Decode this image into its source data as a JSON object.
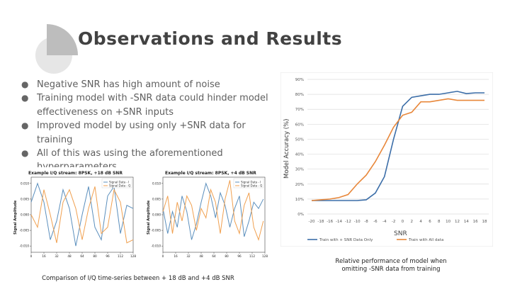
{
  "slide": {
    "title": "Observations and Results",
    "bullets": [
      "Negative SNR has high amount of noise",
      "Training model with -SNR data could hinder model effectiveness on +SNR inputs",
      "Improved model by using only +SNR data for training",
      "All of this was using the aforementioned hyperparameters"
    ],
    "left_caption": "Comparison of I/Q time-series between + 18 dB and +4 dB SNR",
    "right_caption": "Relative performance of model when omitting -SNR data from training"
  },
  "chart_data": [
    {
      "type": "line",
      "title": "Example I/Q stream: 8PSK, +18 dB SNR",
      "ylabel": "Signal Amplitude",
      "xlabel": "",
      "x_ticks": [
        0,
        16,
        32,
        48,
        64,
        80,
        96,
        112,
        128
      ],
      "y_ticks": [
        "0.010",
        "0.005",
        "0.000",
        "-0.005",
        "-0.010"
      ],
      "ylim": [
        -0.012,
        0.012
      ],
      "xlim": [
        0,
        128
      ],
      "legend": "top-right",
      "series": [
        {
          "name": "Signal Data - I",
          "color": "#5b8fbd",
          "x": [
            0,
            8,
            16,
            24,
            32,
            40,
            48,
            56,
            64,
            72,
            80,
            88,
            96,
            104,
            112,
            120,
            128
          ],
          "values": [
            0.004,
            0.01,
            0.004,
            -0.008,
            -0.002,
            0.008,
            0.002,
            -0.01,
            0.0,
            0.009,
            -0.004,
            -0.008,
            0.006,
            0.009,
            -0.006,
            0.003,
            0.002
          ]
        },
        {
          "name": "Signal Data - Q",
          "color": "#f0a050",
          "x": [
            0,
            8,
            16,
            24,
            32,
            40,
            48,
            56,
            64,
            72,
            80,
            88,
            96,
            104,
            112,
            120,
            128
          ],
          "values": [
            0.0,
            -0.004,
            0.008,
            0.0,
            -0.009,
            0.004,
            0.008,
            0.002,
            -0.008,
            0.002,
            0.009,
            -0.006,
            -0.004,
            0.008,
            0.004,
            -0.009,
            -0.008
          ]
        }
      ]
    },
    {
      "type": "line",
      "title": "Example I/Q stream: 8PSK, +4 dB SNR",
      "ylabel": "Signal Amplitude",
      "xlabel": "",
      "x_ticks": [
        0,
        16,
        32,
        48,
        64,
        80,
        96,
        112,
        128
      ],
      "y_ticks": [
        "0.010",
        "0.005",
        "0.000",
        "-0.005",
        "-0.010"
      ],
      "ylim": [
        -0.012,
        0.012
      ],
      "xlim": [
        0,
        128
      ],
      "legend": "top-right",
      "series": [
        {
          "name": "Signal Data - I",
          "color": "#5b8fbd",
          "x": [
            0,
            6,
            12,
            18,
            24,
            30,
            36,
            42,
            48,
            54,
            60,
            66,
            72,
            78,
            84,
            90,
            96,
            102,
            108,
            114,
            120,
            126
          ],
          "values": [
            0.002,
            -0.006,
            0.001,
            -0.004,
            0.006,
            0.001,
            -0.008,
            -0.003,
            0.004,
            0.01,
            0.006,
            -0.001,
            0.007,
            0.003,
            -0.004,
            0.002,
            0.006,
            -0.007,
            -0.002,
            0.004,
            0.002,
            0.005
          ]
        },
        {
          "name": "Signal Data - Q",
          "color": "#f0a050",
          "x": [
            0,
            6,
            12,
            18,
            24,
            30,
            36,
            42,
            48,
            54,
            60,
            66,
            72,
            78,
            84,
            90,
            96,
            102,
            108,
            114,
            120,
            126
          ],
          "values": [
            0.001,
            0.006,
            -0.006,
            0.004,
            -0.002,
            0.006,
            0.003,
            -0.005,
            0.002,
            -0.001,
            0.008,
            0.004,
            -0.006,
            0.005,
            0.011,
            -0.002,
            -0.006,
            0.003,
            0.007,
            -0.004,
            -0.008,
            -0.002
          ]
        }
      ]
    },
    {
      "type": "line",
      "title": "",
      "xlabel": "SNR",
      "ylabel": "Model Accuracy (%)",
      "categories": [
        "-20",
        "-18",
        "-16",
        "-14",
        "-12",
        "-10",
        "-8",
        "-6",
        "-4",
        "-2",
        "0",
        "2",
        "4",
        "6",
        "8",
        "10",
        "12",
        "14",
        "16",
        "18"
      ],
      "y_ticks": [
        "0%",
        "10%",
        "20%",
        "30%",
        "40%",
        "50%",
        "60%",
        "70%",
        "80%",
        "90%"
      ],
      "ylim": [
        0,
        90
      ],
      "grid": true,
      "legend": "bottom",
      "series": [
        {
          "name": "Train with + SNR Data Only",
          "color": "#3c6ea8",
          "values": [
            9,
            9,
            9,
            9,
            9,
            9,
            9.5,
            14,
            25,
            50,
            72,
            78,
            79,
            80,
            80,
            81,
            82,
            80.5,
            81,
            81
          ]
        },
        {
          "name": "Train with All data",
          "color": "#e8873a",
          "values": [
            9,
            9.5,
            10,
            11,
            13,
            20,
            26,
            35,
            46,
            58,
            66,
            68,
            75,
            75,
            76,
            77,
            76,
            76,
            76,
            76
          ]
        }
      ]
    }
  ]
}
